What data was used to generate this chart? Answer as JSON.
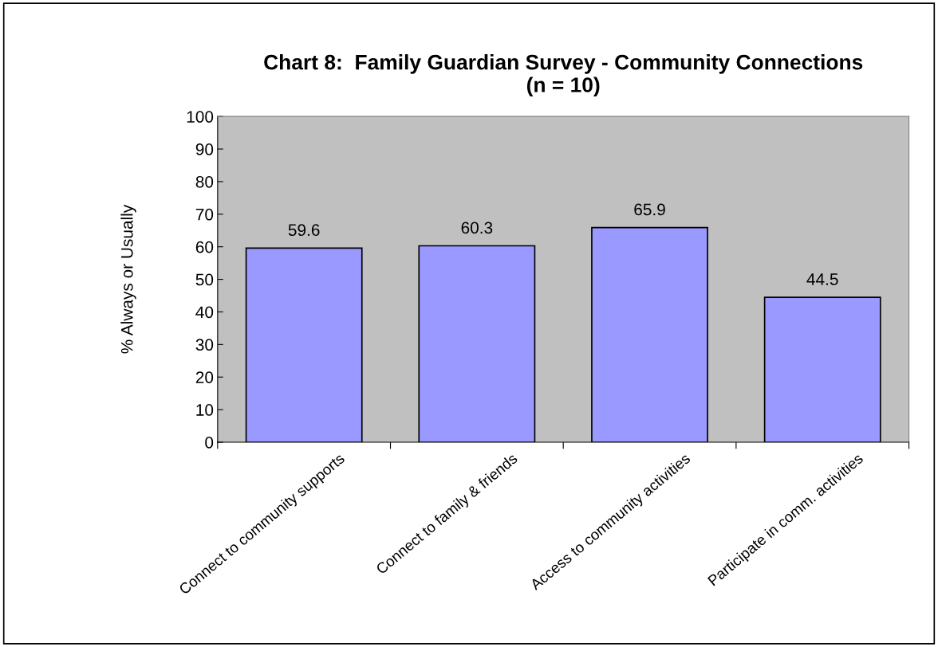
{
  "chart_data": {
    "type": "bar",
    "title": "Chart 8:  Family Guardian Survey - Community Connections\n(n = 10)",
    "ylabel": "% Always or Usually",
    "categories": [
      "Connect to community supports",
      "Connect to family & friends",
      "Access to community activities",
      "Participate in comm. activities"
    ],
    "values": [
      59.6,
      60.3,
      65.9,
      44.5
    ],
    "color": "#9999ff",
    "ylim": [
      0,
      100
    ],
    "yticks": [
      0,
      10,
      20,
      30,
      40,
      50,
      60,
      70,
      80,
      90,
      100
    ],
    "data_labels": true,
    "grid": false,
    "legend": false
  }
}
